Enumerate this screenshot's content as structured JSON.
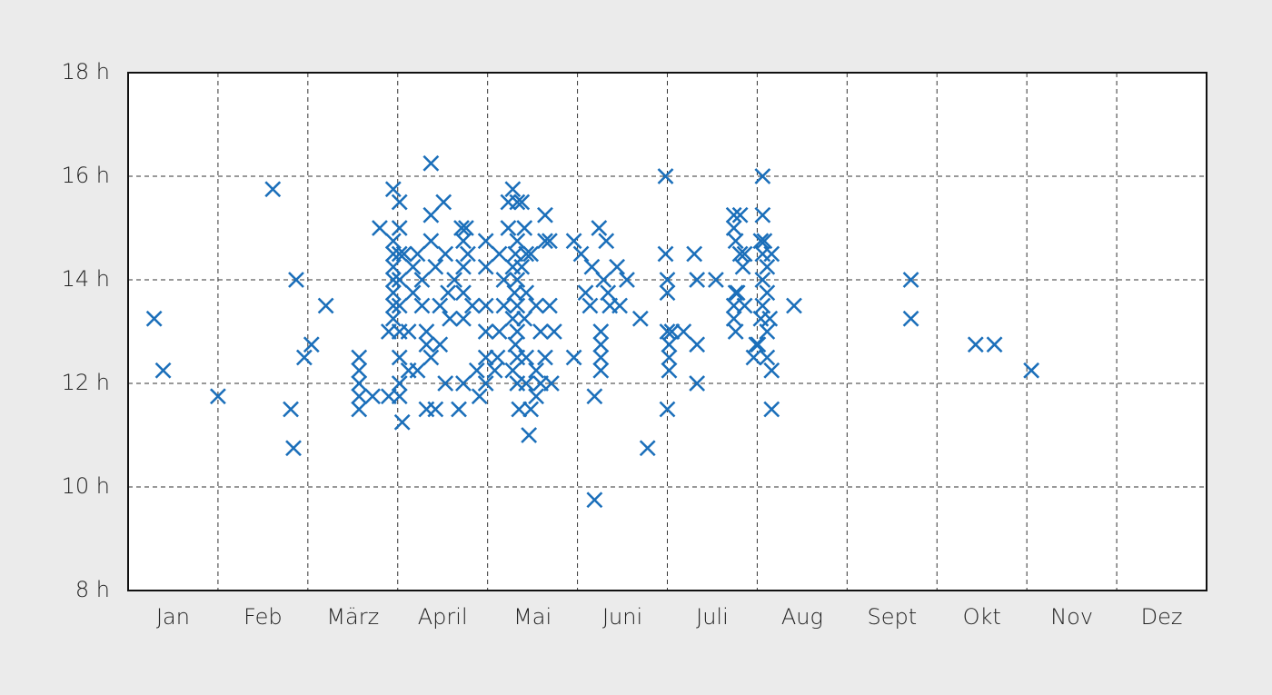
{
  "chart_data": {
    "type": "scatter",
    "marker": "x",
    "color": "#1b6fba",
    "xlim": [
      0,
      12
    ],
    "xticks": [
      {
        "value": 0.5,
        "label": "Jan"
      },
      {
        "value": 1.5,
        "label": "Feb"
      },
      {
        "value": 2.5,
        "label": "März"
      },
      {
        "value": 3.5,
        "label": "April"
      },
      {
        "value": 4.5,
        "label": "Mai"
      },
      {
        "value": 5.5,
        "label": "Juni"
      },
      {
        "value": 6.5,
        "label": "Juli"
      },
      {
        "value": 7.5,
        "label": "Aug"
      },
      {
        "value": 8.5,
        "label": "Sept"
      },
      {
        "value": 9.5,
        "label": "Okt"
      },
      {
        "value": 10.5,
        "label": "Nov"
      },
      {
        "value": 11.5,
        "label": "Dez"
      }
    ],
    "x_gridlines": [
      1,
      2,
      3,
      4,
      5,
      6,
      7,
      8,
      9,
      10,
      11
    ],
    "ylim": [
      8,
      18
    ],
    "yticks": [
      {
        "value": 8,
        "label": "8 h"
      },
      {
        "value": 10,
        "label": "10 h"
      },
      {
        "value": 12,
        "label": "12 h"
      },
      {
        "value": 14,
        "label": "14 h"
      },
      {
        "value": 16,
        "label": "16 h"
      },
      {
        "value": 18,
        "label": "18 h"
      }
    ],
    "grid": true,
    "x": [
      0.29,
      0.39,
      1.0,
      1.61,
      1.87,
      1.81,
      1.84,
      1.96,
      2.04,
      2.2,
      2.57,
      2.57,
      2.57,
      2.57,
      2.57,
      2.72,
      2.8,
      2.9,
      2.9,
      2.95,
      2.95,
      2.95,
      2.95,
      2.95,
      2.95,
      2.95,
      2.95,
      3.02,
      3.02,
      3.02,
      3.02,
      3.02,
      3.02,
      3.02,
      3.02,
      3.02,
      3.05,
      3.17,
      3.17,
      3.22,
      3.27,
      3.27,
      3.32,
      3.32,
      3.37,
      3.37,
      3.37,
      3.37,
      3.42,
      3.42,
      3.47,
      3.47,
      3.51,
      3.53,
      3.53,
      3.56,
      3.58,
      3.63,
      3.68,
      3.71,
      3.73,
      3.73,
      3.73,
      3.73,
      3.73,
      3.76,
      3.78,
      3.83,
      3.88,
      3.91,
      3.98,
      3.98,
      3.98,
      3.98,
      3.98,
      3.98,
      3.32,
      3.22,
      3.12,
      3.07,
      3.12,
      4.23,
      4.28,
      4.33,
      4.38,
      4.23,
      4.33,
      4.31,
      4.28,
      4.33,
      4.3,
      4.33,
      4.28,
      4.33,
      4.31,
      4.33,
      4.28,
      4.33,
      4.38,
      4.41,
      4.43,
      4.43,
      4.35,
      4.46,
      4.48,
      4.18,
      4.18,
      4.13,
      4.13,
      4.08,
      4.11,
      4.54,
      4.54,
      4.59,
      4.64,
      4.64,
      4.64,
      4.69,
      4.69,
      4.71,
      4.74,
      4.59,
      4.48,
      4.54,
      4.43,
      4.43,
      4.41,
      4.96,
      4.96,
      5.04,
      5.09,
      5.14,
      5.16,
      5.19,
      5.19,
      5.24,
      5.26,
      5.26,
      5.26,
      5.26,
      5.29,
      5.32,
      5.34,
      5.36,
      5.44,
      5.47,
      5.55,
      5.7,
      5.78,
      5.98,
      5.98,
      6.0,
      6.0,
      6.0,
      6.02,
      6.02,
      6.02,
      6.0,
      6.05,
      6.18,
      6.3,
      6.33,
      6.33,
      6.33,
      6.54,
      6.74,
      6.74,
      6.76,
      6.76,
      6.74,
      6.74,
      6.76,
      6.81,
      6.81,
      6.84,
      6.86,
      6.78,
      6.86,
      6.96,
      6.99,
      7.06,
      7.06,
      7.04,
      7.06,
      7.11,
      7.16,
      7.06,
      7.11,
      7.06,
      7.14,
      7.04,
      7.11,
      7.01,
      7.16,
      7.16,
      7.41,
      7.11,
      7.08,
      8.71,
      8.71,
      9.43,
      9.64,
      10.05
    ],
    "values": [
      13.25,
      12.25,
      11.75,
      15.75,
      14,
      11.5,
      10.75,
      12.5,
      12.75,
      13.5,
      12.5,
      12.25,
      12,
      11.75,
      11.5,
      11.75,
      15,
      11.75,
      13,
      15.75,
      14.75,
      14.5,
      14.25,
      14,
      13.75,
      13.5,
      13.25,
      15.5,
      15,
      14.5,
      14,
      13.5,
      13,
      12.5,
      12,
      11.75,
      11.25,
      14.25,
      13.75,
      14.5,
      14,
      13.5,
      13,
      12.75,
      16.25,
      15.25,
      14.75,
      12.5,
      14.25,
      11.5,
      13.5,
      12.75,
      15.5,
      14.5,
      12,
      13.75,
      13.25,
      14,
      11.5,
      15,
      14.75,
      14.25,
      13.75,
      13.25,
      12,
      15,
      14.5,
      13.5,
      12.25,
      11.75,
      14.75,
      14.25,
      13.5,
      13,
      12.5,
      12,
      11.5,
      12.25,
      12.25,
      14.5,
      13,
      15.5,
      15.75,
      15.5,
      15.5,
      15,
      14.75,
      14.5,
      14.25,
      14,
      13.75,
      13.5,
      13.25,
      13,
      12.75,
      12.5,
      12.25,
      12,
      14.25,
      13.25,
      12.5,
      12,
      11.5,
      11,
      11.5,
      14,
      13.5,
      14.5,
      13,
      12.25,
      12.5,
      13.5,
      12.25,
      13,
      15.25,
      12.5,
      14.75,
      14.75,
      13.5,
      12,
      13,
      12,
      14.5,
      11.75,
      14.5,
      13.75,
      15,
      14.75,
      12.5,
      14.5,
      13.75,
      13.5,
      14.25,
      11.75,
      9.75,
      15,
      13,
      12.75,
      12.5,
      12.25,
      14,
      14.75,
      13.75,
      13.5,
      14.25,
      13.5,
      14,
      13.25,
      10.75,
      16,
      14.5,
      14,
      13.75,
      13,
      12.75,
      12.5,
      12.25,
      11.5,
      13,
      13,
      14.5,
      14,
      12.75,
      12,
      14,
      15.25,
      15,
      14.75,
      13.75,
      13.5,
      13.25,
      13,
      15.25,
      14.5,
      14.25,
      14.5,
      13.75,
      13.5,
      12.5,
      12.75,
      16,
      15.25,
      14.75,
      14.5,
      14.25,
      14.5,
      14,
      13.75,
      13.5,
      13.25,
      13.25,
      13,
      12.75,
      12.25,
      11.5,
      13.5,
      12.5,
      14.75,
      14,
      13.25,
      12.75,
      12.75,
      12.25
    ]
  }
}
